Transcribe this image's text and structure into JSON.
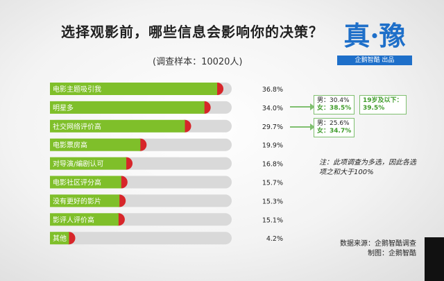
{
  "header": {
    "title": "选择观影前，哪些信息会影响你的决策？",
    "subtitle": "(调查样本：10020人)"
  },
  "logo": {
    "text": "真·豫",
    "tag": "企鹅智酷 出品"
  },
  "chart_data": {
    "type": "bar",
    "orientation": "horizontal",
    "categories": [
      "电影主题吸引我",
      "明星多",
      "社交网络评价高",
      "电影票房高",
      "对导演/编剧认可",
      "电影社区评分高",
      "没有更好的影片",
      "影评人评价高",
      "其他"
    ],
    "values": [
      36.8,
      34.0,
      29.7,
      19.9,
      16.8,
      15.7,
      15.3,
      15.1,
      4.2
    ],
    "value_labels": [
      "36.8%",
      "34.0%",
      "29.7%",
      "19.9%",
      "16.8%",
      "15.7%",
      "15.3%",
      "15.1%",
      "4.2%"
    ],
    "xlim": [
      0,
      40
    ],
    "colors": {
      "bar": "#7fbf2a",
      "cap": "#d7262a",
      "track": "#d9d9d9"
    }
  },
  "callouts": {
    "star": {
      "male": "男：30.4%",
      "female": "女：38.5%",
      "age_line1": "19岁及以下：",
      "age_line2": "39.5%"
    },
    "social": {
      "male": "男：25.6%",
      "female": "女：34.7%"
    }
  },
  "note": "注：此项调查为多选，因此各选项之和大于100%",
  "source": {
    "line1": "数据来源：企鹅智酷调查",
    "line2": "制图：企鹅智酷"
  }
}
